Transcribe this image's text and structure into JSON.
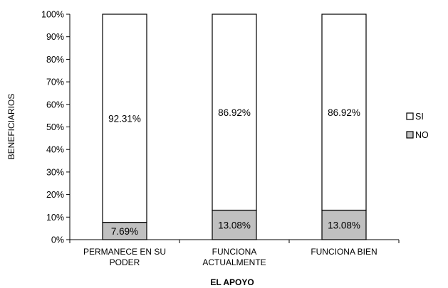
{
  "chart_data": {
    "type": "bar",
    "stacked": "percent",
    "title": "",
    "xlabel": "EL APOYO",
    "ylabel": "BENEFICIARIOS",
    "ylim": [
      0,
      100
    ],
    "y_ticks": [
      "0%",
      "10%",
      "20%",
      "30%",
      "40%",
      "50%",
      "60%",
      "70%",
      "80%",
      "90%",
      "100%"
    ],
    "categories": [
      [
        "PERMANECE EN SU",
        "PODER"
      ],
      [
        "FUNCIONA",
        "ACTUALMENTE"
      ],
      [
        "FUNCIONA BIEN"
      ]
    ],
    "series": [
      {
        "name": "NO",
        "values": [
          7.69,
          13.08,
          13.08
        ],
        "labels": [
          "7.69%",
          "13.08%",
          "13.08%"
        ],
        "color": "#c0c0c0"
      },
      {
        "name": "SI",
        "values": [
          92.31,
          86.92,
          86.92
        ],
        "labels": [
          "92.31%",
          "86.92%",
          "86.92%"
        ],
        "color": "#ffffff"
      }
    ],
    "legend": {
      "position": "right",
      "entries": [
        "SI",
        "NO"
      ]
    },
    "grid": false
  }
}
